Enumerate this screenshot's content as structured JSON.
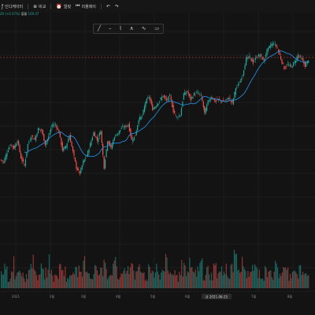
{
  "topbar": {
    "items": [
      {
        "label": "인디케이터",
        "icon": "fx-icon"
      },
      {
        "label": "비교",
        "icon": "compare-icon"
      },
      {
        "label": "얼럿",
        "icon": "alert-icon"
      },
      {
        "label": "리플레이",
        "icon": "replay-icon"
      }
    ],
    "undo_label": "↶",
    "redo_label": "↷"
  },
  "legend": {
    "change": "20 (+0.47%)",
    "volume_label": "볼륨",
    "volume_value": "100.47"
  },
  "toolbar": {
    "tools": [
      "line-tool-icon",
      "horizontal-line-icon",
      "brush-icon",
      "pattern-icon",
      "wave-icon",
      "text-icon"
    ]
  },
  "x_axis": {
    "labels": [
      "2021",
      "2월",
      "3월",
      "4월",
      "5월",
      "6월",
      "7월",
      "8월"
    ],
    "crosshair_date": "금 2021-06-25"
  },
  "colors": {
    "background": "#131313",
    "up": "#26a69a",
    "down": "#ef5350",
    "ma": "#2196f3",
    "crosshair": "#e05050"
  },
  "chart_data": {
    "type": "candlestick",
    "description_units": "price units (no y-axis labels visible)",
    "price_path": [
      210,
      205,
      230,
      250,
      240,
      260,
      215,
      195,
      250,
      270,
      262,
      290,
      285,
      250,
      270,
      300,
      300,
      280,
      235,
      245,
      272,
      230,
      190,
      175,
      205,
      220,
      250,
      280,
      260,
      285,
      190,
      260,
      240,
      270,
      278,
      292,
      295,
      300,
      260,
      272,
      315,
      322,
      360,
      372,
      340,
      350,
      362,
      375,
      362,
      375,
      335,
      320,
      325,
      380,
      385,
      365,
      380,
      382,
      375,
      330,
      360,
      372,
      360,
      365,
      360,
      362,
      370,
      355,
      395,
      405,
      430,
      470,
      475,
      460,
      475,
      480,
      465,
      490,
      505,
      510,
      498,
      470,
      445,
      455,
      450,
      462,
      480,
      470,
      452,
      468
    ],
    "volume": [
      30,
      45,
      20,
      60,
      35,
      50,
      40,
      25,
      55,
      70,
      30,
      45,
      35,
      40,
      60,
      25,
      30,
      50,
      45,
      20,
      35,
      55,
      40,
      30,
      60,
      45,
      25,
      50,
      35,
      40,
      70,
      30,
      45,
      55,
      25,
      40,
      35,
      50,
      60,
      30,
      45,
      35,
      25,
      50,
      40,
      55,
      30,
      45,
      60,
      35,
      40,
      25,
      50,
      45,
      30,
      55,
      35,
      40,
      60,
      25,
      45,
      30,
      50,
      35,
      40,
      55,
      30,
      45,
      95,
      35,
      60,
      40,
      30,
      50,
      45,
      35,
      25,
      40,
      55,
      30,
      50,
      35,
      45,
      40,
      30,
      55,
      35,
      45,
      30,
      40
    ],
    "ma_period": 20
  }
}
